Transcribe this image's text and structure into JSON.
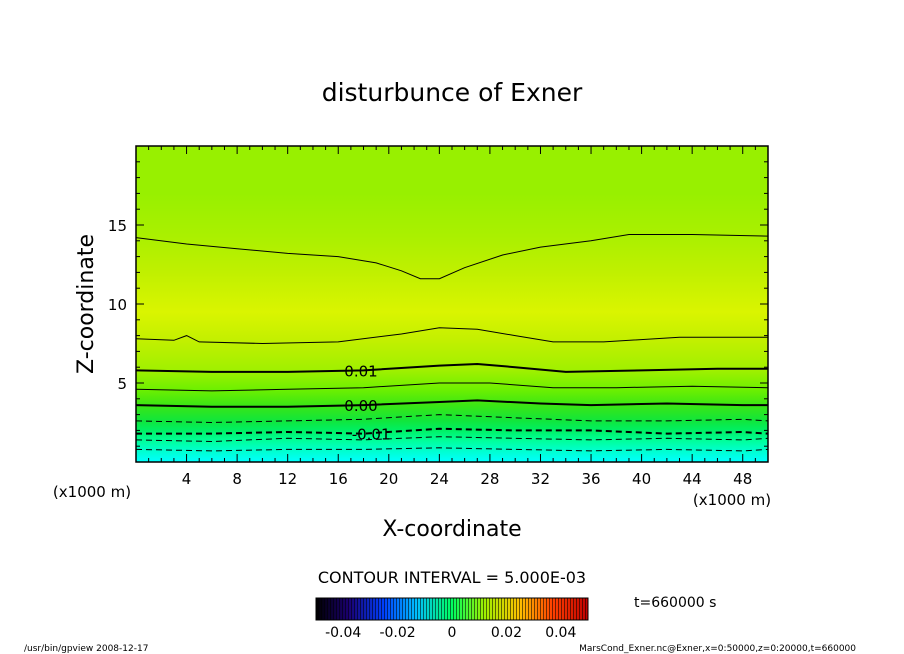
{
  "chart_data": {
    "type": "contour",
    "title": "disturbunce of Exner",
    "xlabel": "X-coordinate",
    "ylabel": "Z-coordinate",
    "x_unit": "(x1000 m)",
    "y_unit": "(x1000 m)",
    "xlim": [
      0,
      50
    ],
    "ylim": [
      0,
      20
    ],
    "x_ticks": [
      4,
      8,
      12,
      16,
      20,
      24,
      28,
      32,
      36,
      40,
      44,
      48
    ],
    "y_ticks": [
      5,
      10,
      15
    ],
    "contour_interval_text": "CONTOUR INTERVAL = 5.000E-03",
    "contours": [
      {
        "level": -0.02,
        "style": "dashed",
        "points": [
          [
            0,
            0.8
          ],
          [
            6,
            0.7
          ],
          [
            12,
            0.8
          ],
          [
            18,
            0.8
          ],
          [
            24,
            0.9
          ],
          [
            30,
            0.8
          ],
          [
            36,
            0.7
          ],
          [
            42,
            0.8
          ],
          [
            48,
            0.7
          ],
          [
            50,
            0.8
          ]
        ]
      },
      {
        "level": -0.015,
        "style": "dashed",
        "points": [
          [
            0,
            1.4
          ],
          [
            6,
            1.3
          ],
          [
            12,
            1.5
          ],
          [
            18,
            1.4
          ],
          [
            24,
            1.6
          ],
          [
            30,
            1.5
          ],
          [
            36,
            1.4
          ],
          [
            42,
            1.5
          ],
          [
            48,
            1.4
          ],
          [
            50,
            1.5
          ]
        ]
      },
      {
        "level": -0.01,
        "style": "dashed-bold",
        "points": [
          [
            0,
            1.8
          ],
          [
            6,
            1.8
          ],
          [
            12,
            1.9
          ],
          [
            18,
            1.8
          ],
          [
            24,
            2.1
          ],
          [
            30,
            2.0
          ],
          [
            36,
            2.0
          ],
          [
            42,
            1.8
          ],
          [
            48,
            1.9
          ],
          [
            50,
            1.8
          ]
        ]
      },
      {
        "level": -0.005,
        "style": "dashed",
        "points": [
          [
            0,
            2.6
          ],
          [
            6,
            2.5
          ],
          [
            12,
            2.6
          ],
          [
            18,
            2.7
          ],
          [
            24,
            3.0
          ],
          [
            30,
            2.8
          ],
          [
            36,
            2.6
          ],
          [
            42,
            2.6
          ],
          [
            48,
            2.7
          ],
          [
            50,
            2.6
          ]
        ]
      },
      {
        "level": 0.0,
        "style": "solid-bold",
        "points": [
          [
            0,
            3.6
          ],
          [
            6,
            3.5
          ],
          [
            12,
            3.5
          ],
          [
            18,
            3.6
          ],
          [
            24,
            3.8
          ],
          [
            27,
            3.9
          ],
          [
            32,
            3.7
          ],
          [
            36,
            3.6
          ],
          [
            42,
            3.7
          ],
          [
            48,
            3.6
          ],
          [
            50,
            3.6
          ]
        ]
      },
      {
        "level": 0.005,
        "style": "solid",
        "points": [
          [
            0,
            4.6
          ],
          [
            6,
            4.5
          ],
          [
            12,
            4.6
          ],
          [
            18,
            4.7
          ],
          [
            24,
            5.0
          ],
          [
            28,
            5.0
          ],
          [
            33,
            4.7
          ],
          [
            38,
            4.7
          ],
          [
            44,
            4.8
          ],
          [
            50,
            4.7
          ]
        ]
      },
      {
        "level": 0.01,
        "style": "solid-bold",
        "points": [
          [
            0,
            5.8
          ],
          [
            6,
            5.7
          ],
          [
            12,
            5.7
          ],
          [
            18,
            5.8
          ],
          [
            24,
            6.1
          ],
          [
            27,
            6.2
          ],
          [
            30,
            6.0
          ],
          [
            34,
            5.7
          ],
          [
            40,
            5.8
          ],
          [
            46,
            5.9
          ],
          [
            50,
            5.9
          ]
        ]
      },
      {
        "level": 0.015,
        "style": "solid",
        "points": [
          [
            0,
            7.8
          ],
          [
            3,
            7.7
          ],
          [
            4,
            8.0
          ],
          [
            5,
            7.6
          ],
          [
            10,
            7.5
          ],
          [
            16,
            7.6
          ],
          [
            21,
            8.1
          ],
          [
            24,
            8.5
          ],
          [
            27,
            8.4
          ],
          [
            30,
            8.0
          ],
          [
            33,
            7.6
          ],
          [
            37,
            7.6
          ],
          [
            43,
            7.9
          ],
          [
            50,
            7.9
          ]
        ]
      },
      {
        "level": 0.02,
        "style": "solid",
        "points": [
          [
            0,
            14.2
          ],
          [
            4,
            13.8
          ],
          [
            8,
            13.5
          ],
          [
            12,
            13.2
          ],
          [
            16,
            13.0
          ],
          [
            19,
            12.6
          ],
          [
            21,
            12.1
          ],
          [
            22.5,
            11.6
          ],
          [
            24,
            11.6
          ],
          [
            26,
            12.3
          ],
          [
            29,
            13.1
          ],
          [
            32,
            13.6
          ],
          [
            36,
            14.0
          ],
          [
            39,
            14.4
          ],
          [
            44,
            14.4
          ],
          [
            50,
            14.3
          ]
        ]
      }
    ],
    "colorbar": {
      "ticks": [
        "-0.04",
        "-0.02",
        "0",
        "0.02",
        "0.04"
      ],
      "range": [
        -0.05,
        0.05
      ]
    },
    "field_bands": [
      {
        "z": 0.0,
        "color": "#00ffff"
      },
      {
        "z": 0.8,
        "color": "#00ffc8"
      },
      {
        "z": 1.4,
        "color": "#00ff96"
      },
      {
        "z": 2.0,
        "color": "#00f064"
      },
      {
        "z": 2.6,
        "color": "#10e63c"
      },
      {
        "z": 3.6,
        "color": "#3ce614"
      },
      {
        "z": 4.6,
        "color": "#6ef000"
      },
      {
        "z": 5.8,
        "color": "#a0f000"
      },
      {
        "z": 7.8,
        "color": "#c4f000"
      },
      {
        "z": 9.5,
        "color": "#daf500"
      },
      {
        "z": 12.0,
        "color": "#c0f000"
      },
      {
        "z": 14.3,
        "color": "#aaf000"
      },
      {
        "z": 17.0,
        "color": "#98f000"
      },
      {
        "z": 20.0,
        "color": "#98f000"
      }
    ]
  },
  "labels": {
    "time": "t=660000 s",
    "footer_left": "/usr/bin/gpview   2008-12-17",
    "footer_right": "MarsCond_Exner.nc@Exner,x=0:50000,z=0:20000,t=660000",
    "contour_labels": [
      {
        "text": "0.01",
        "x": 17.8,
        "z": 5.8
      },
      {
        "text": "0.00",
        "x": 17.8,
        "z": 3.6
      },
      {
        "text": "-0.01",
        "x": 18.6,
        "z": 1.8
      }
    ]
  }
}
